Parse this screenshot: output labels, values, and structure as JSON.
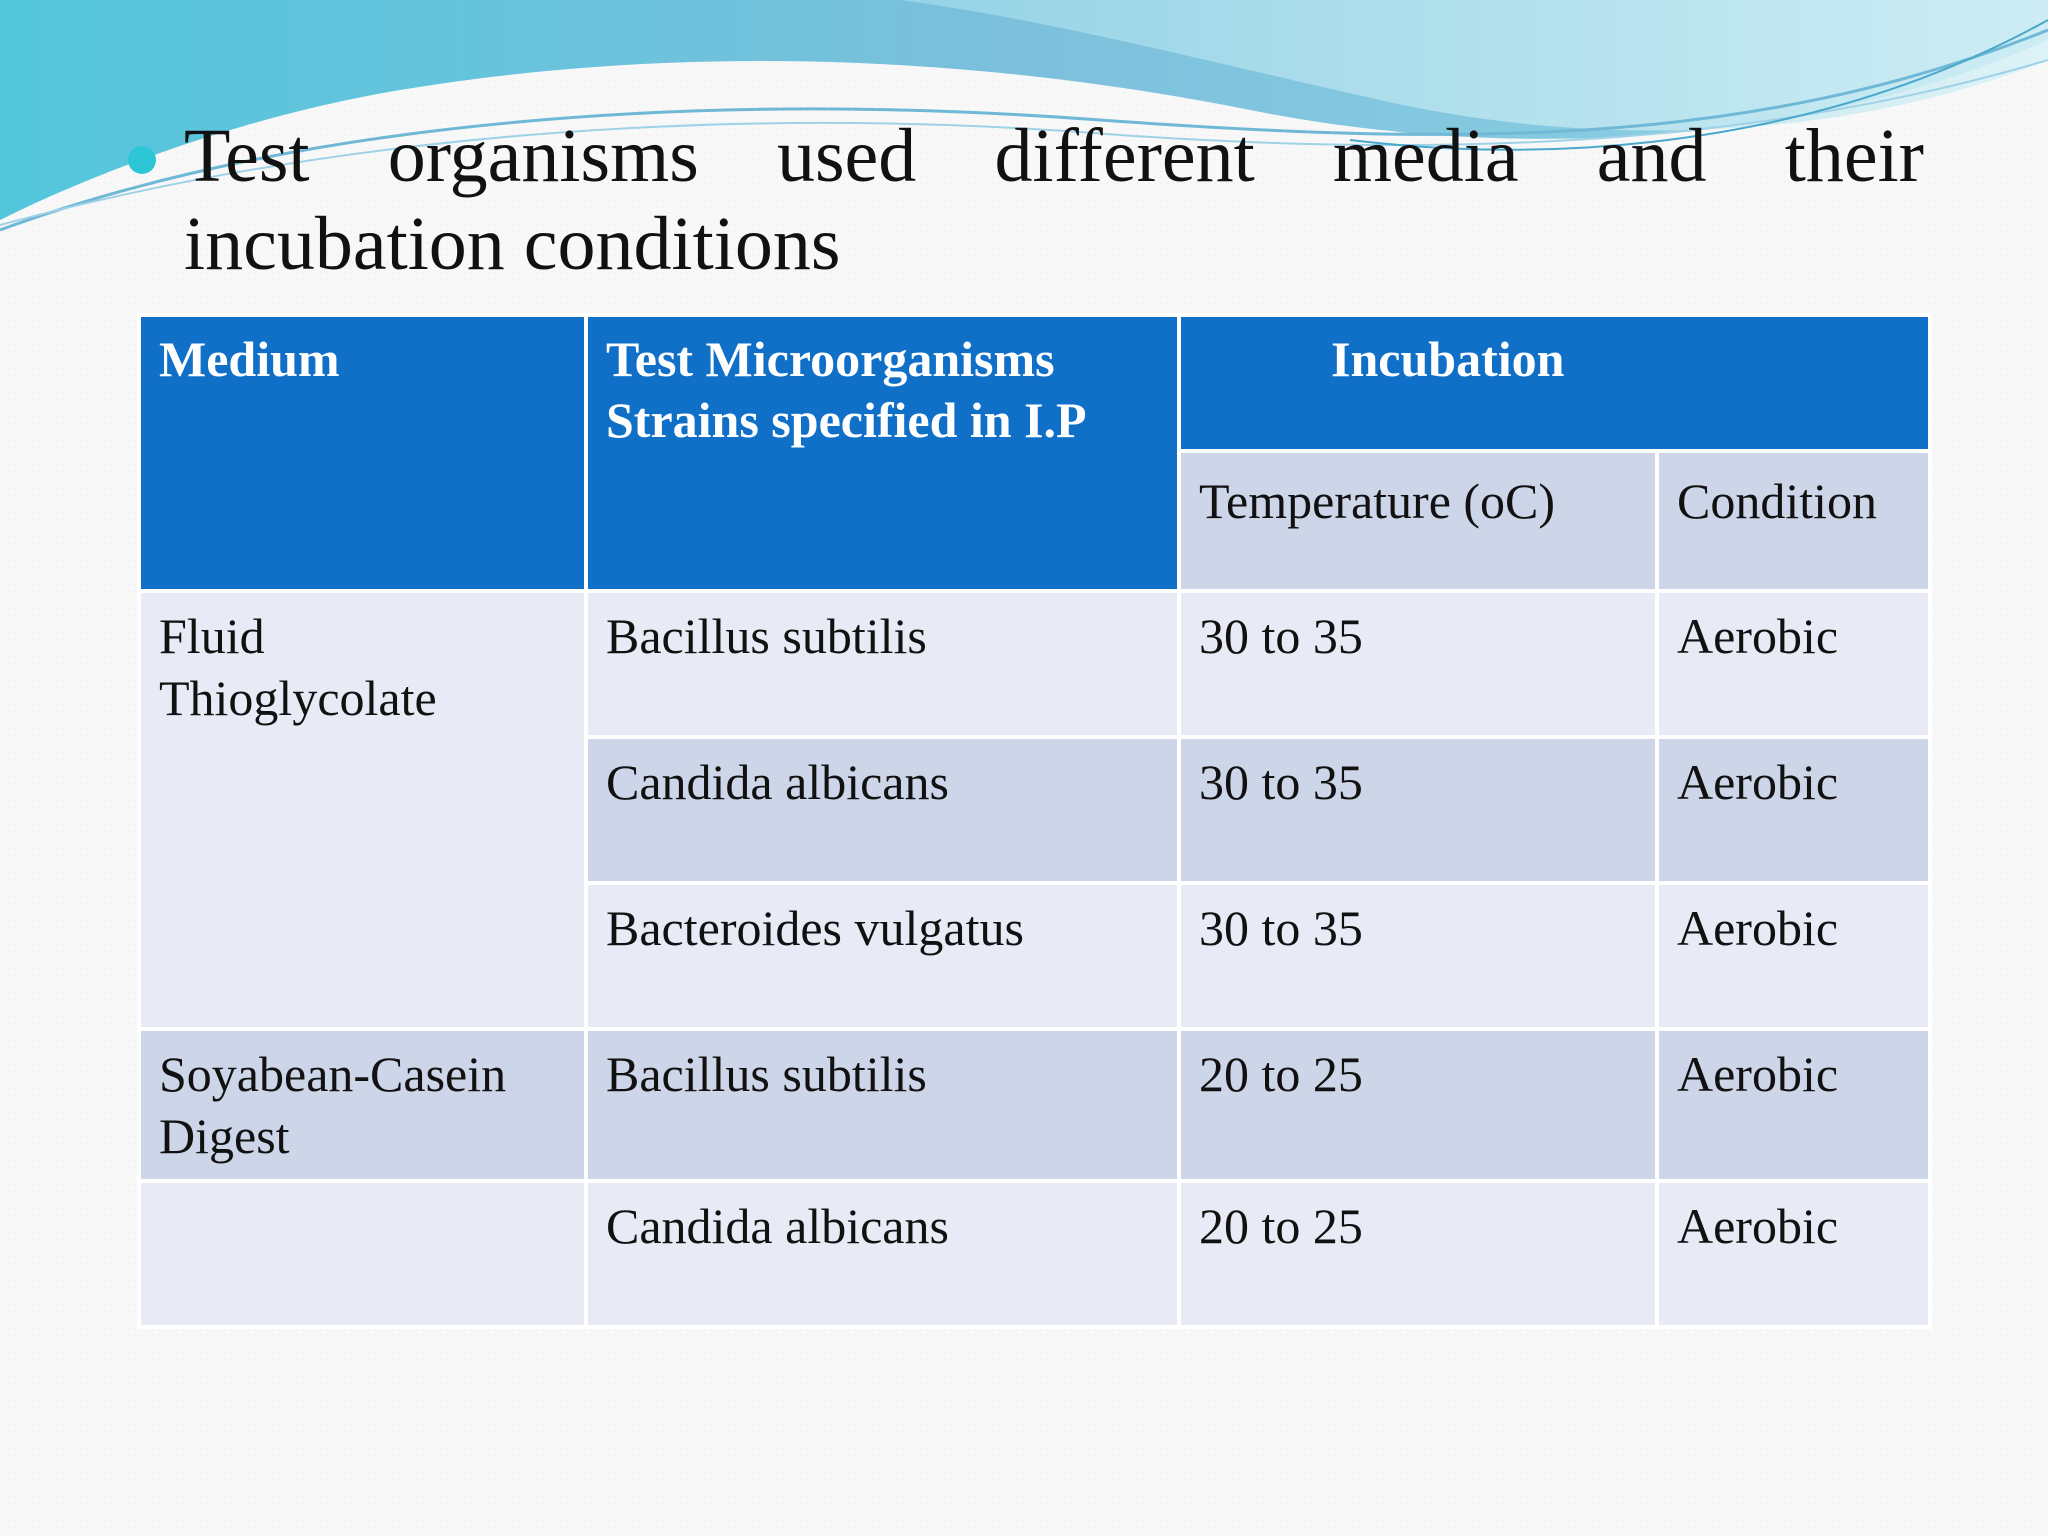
{
  "slide": {
    "bullet_line1": "Test organisms used different media and their",
    "bullet_line2": "incubation conditions"
  },
  "table": {
    "headers": {
      "medium": "Medium",
      "organisms_line1": "Test Microorganisms",
      "organisms_line2": "Strains specified in I.P",
      "incubation": "Incubation",
      "temperature": "Temperature (oC)",
      "condition": "Condition"
    },
    "groups": [
      {
        "medium_line1": "Fluid",
        "medium_line2": "Thioglycolate",
        "rows": [
          {
            "organism": "Bacillus subtilis",
            "temperature": "30 to 35",
            "condition": "Aerobic"
          },
          {
            "organism": "Candida albicans",
            "temperature": "30 to 35",
            "condition": "Aerobic"
          },
          {
            "organism": "Bacteroides vulgatus",
            "temperature": "30 to 35",
            "condition": "Aerobic"
          }
        ]
      },
      {
        "medium_line1": "Soyabean-Casein",
        "medium_line2": "Digest",
        "rows": [
          {
            "organism": "Bacillus subtilis",
            "temperature": "20 to 25",
            "condition": "Aerobic"
          },
          {
            "organism": "Candida albicans",
            "temperature": "20 to 25",
            "condition": "Aerobic"
          }
        ]
      }
    ]
  },
  "colors": {
    "header_blue": "#1070c8",
    "row_light": "#e8ebf5",
    "row_dark": "#cdd5e8",
    "bullet": "#2dc6d6"
  }
}
